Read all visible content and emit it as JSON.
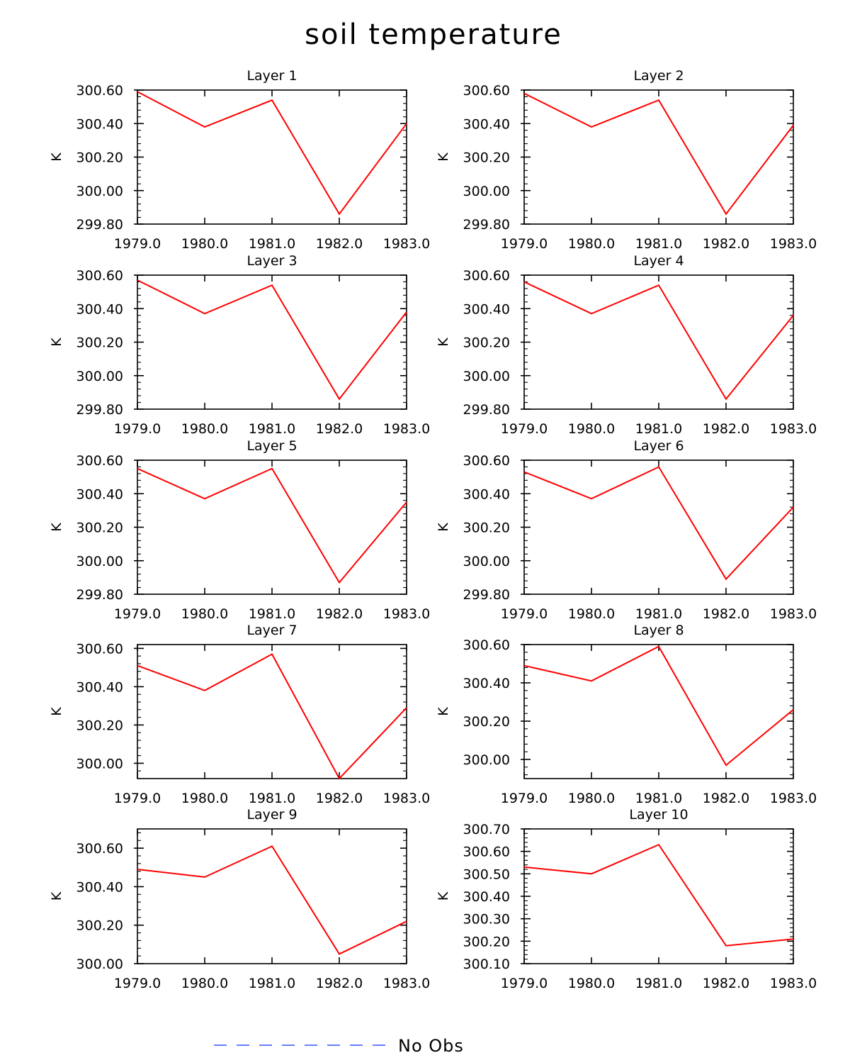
{
  "figure": {
    "title": "soil temperature",
    "legend": {
      "label": "No Obs",
      "line_color": "#3355ff",
      "dash": "dashed"
    }
  },
  "colors": {
    "series": "#ff0000",
    "axes": "#000000",
    "background": "#ffffff"
  },
  "chart_data": [
    {
      "type": "line",
      "title": "Layer 1",
      "ylabel": "K",
      "x": [
        1979,
        1980,
        1981,
        1982,
        1983
      ],
      "xticks": [
        "1979.0",
        "1980.0",
        "1981.0",
        "1982.0",
        "1983.0"
      ],
      "ylim": [
        299.8,
        300.6
      ],
      "yticks": [
        "299.80",
        "300.00",
        "300.20",
        "300.40",
        "300.60"
      ],
      "y": [
        300.59,
        300.38,
        300.54,
        299.86,
        300.4
      ]
    },
    {
      "type": "line",
      "title": "Layer 2",
      "ylabel": "K",
      "x": [
        1979,
        1980,
        1981,
        1982,
        1983
      ],
      "xticks": [
        "1979.0",
        "1980.0",
        "1981.0",
        "1982.0",
        "1983.0"
      ],
      "ylim": [
        299.8,
        300.6
      ],
      "yticks": [
        "299.80",
        "300.00",
        "300.20",
        "300.40",
        "300.60"
      ],
      "y": [
        300.58,
        300.38,
        300.54,
        299.86,
        300.39
      ]
    },
    {
      "type": "line",
      "title": "Layer 3",
      "ylabel": "K",
      "x": [
        1979,
        1980,
        1981,
        1982,
        1983
      ],
      "xticks": [
        "1979.0",
        "1980.0",
        "1981.0",
        "1982.0",
        "1983.0"
      ],
      "ylim": [
        299.8,
        300.6
      ],
      "yticks": [
        "299.80",
        "300.00",
        "300.20",
        "300.40",
        "300.60"
      ],
      "y": [
        300.57,
        300.37,
        300.54,
        299.86,
        300.38
      ]
    },
    {
      "type": "line",
      "title": "Layer 4",
      "ylabel": "K",
      "x": [
        1979,
        1980,
        1981,
        1982,
        1983
      ],
      "xticks": [
        "1979.0",
        "1980.0",
        "1981.0",
        "1982.0",
        "1983.0"
      ],
      "ylim": [
        299.8,
        300.6
      ],
      "yticks": [
        "299.80",
        "300.00",
        "300.20",
        "300.40",
        "300.60"
      ],
      "y": [
        300.56,
        300.37,
        300.54,
        299.86,
        300.36
      ]
    },
    {
      "type": "line",
      "title": "Layer 5",
      "ylabel": "K",
      "x": [
        1979,
        1980,
        1981,
        1982,
        1983
      ],
      "xticks": [
        "1979.0",
        "1980.0",
        "1981.0",
        "1982.0",
        "1983.0"
      ],
      "ylim": [
        299.8,
        300.6
      ],
      "yticks": [
        "299.80",
        "300.00",
        "300.20",
        "300.40",
        "300.60"
      ],
      "y": [
        300.55,
        300.37,
        300.55,
        299.87,
        300.35
      ]
    },
    {
      "type": "line",
      "title": "Layer 6",
      "ylabel": "K",
      "x": [
        1979,
        1980,
        1981,
        1982,
        1983
      ],
      "xticks": [
        "1979.0",
        "1980.0",
        "1981.0",
        "1982.0",
        "1983.0"
      ],
      "ylim": [
        299.8,
        300.6
      ],
      "yticks": [
        "299.80",
        "300.00",
        "300.20",
        "300.40",
        "300.60"
      ],
      "y": [
        300.53,
        300.37,
        300.56,
        299.89,
        300.32
      ]
    },
    {
      "type": "line",
      "title": "Layer 7",
      "ylabel": "K",
      "x": [
        1979,
        1980,
        1981,
        1982,
        1983
      ],
      "xticks": [
        "1979.0",
        "1980.0",
        "1981.0",
        "1982.0",
        "1983.0"
      ],
      "ylim": [
        299.92,
        300.62
      ],
      "yticks": [
        "300.00",
        "300.20",
        "300.40",
        "300.60"
      ],
      "y": [
        300.51,
        300.38,
        300.57,
        299.92,
        300.29
      ]
    },
    {
      "type": "line",
      "title": "Layer 8",
      "ylabel": "K",
      "x": [
        1979,
        1980,
        1981,
        1982,
        1983
      ],
      "xticks": [
        "1979.0",
        "1980.0",
        "1981.0",
        "1982.0",
        "1983.0"
      ],
      "ylim": [
        299.9,
        300.6
      ],
      "yticks": [
        "300.00",
        "300.20",
        "300.40",
        "300.60"
      ],
      "y": [
        300.49,
        300.41,
        300.59,
        299.97,
        300.26
      ]
    },
    {
      "type": "line",
      "title": "Layer 9",
      "ylabel": "K",
      "x": [
        1979,
        1980,
        1981,
        1982,
        1983
      ],
      "xticks": [
        "1979.0",
        "1980.0",
        "1981.0",
        "1982.0",
        "1983.0"
      ],
      "ylim": [
        300.0,
        300.7
      ],
      "yticks": [
        "300.00",
        "300.20",
        "300.40",
        "300.60"
      ],
      "y": [
        300.49,
        300.45,
        300.61,
        300.05,
        300.22
      ]
    },
    {
      "type": "line",
      "title": "Layer 10",
      "ylabel": "K",
      "x": [
        1979,
        1980,
        1981,
        1982,
        1983
      ],
      "xticks": [
        "1979.0",
        "1980.0",
        "1981.0",
        "1982.0",
        "1983.0"
      ],
      "ylim": [
        300.1,
        300.7
      ],
      "yticks": [
        "300.10",
        "300.20",
        "300.30",
        "300.40",
        "300.50",
        "300.60",
        "300.70"
      ],
      "y": [
        300.53,
        300.5,
        300.63,
        300.18,
        300.21
      ]
    }
  ]
}
